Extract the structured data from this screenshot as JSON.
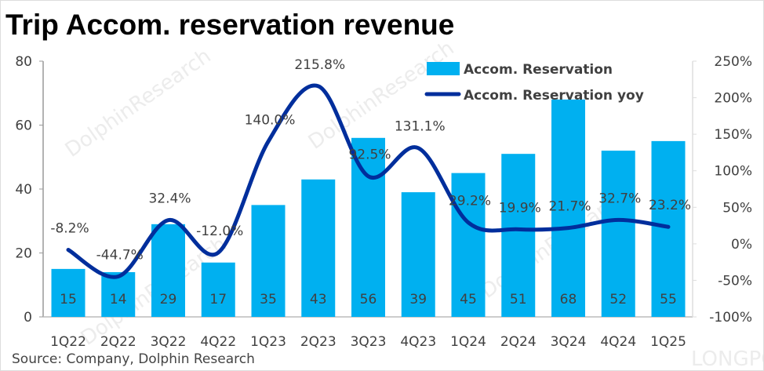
{
  "title": "Trip Accom. reservation revenue",
  "source": "Source: Company, Dolphin Research",
  "watermark": "DolphinResearch",
  "watermark2": "LONGPORT",
  "chart_data": {
    "type": "bar+line",
    "title": "Trip Accom. reservation revenue",
    "categories": [
      "1Q22",
      "2Q22",
      "3Q22",
      "4Q22",
      "1Q23",
      "2Q23",
      "3Q23",
      "4Q23",
      "1Q24",
      "2Q24",
      "3Q24",
      "4Q24",
      "1Q25"
    ],
    "series": [
      {
        "name": "Accom. Reservation",
        "type": "bar",
        "axis": "left",
        "color": "#00B0F0",
        "values": [
          15,
          14,
          29,
          17,
          35,
          43,
          56,
          39,
          45,
          51,
          68,
          52,
          55
        ]
      },
      {
        "name": "Accom. Reservation yoy",
        "type": "line",
        "axis": "right",
        "color": "#002E9C",
        "values": [
          -8.2,
          -44.7,
          32.4,
          -12.0,
          140.0,
          215.8,
          92.5,
          131.1,
          29.2,
          19.9,
          21.7,
          32.7,
          23.2
        ]
      }
    ],
    "ylim": [
      0,
      80
    ],
    "yticks": [
      0,
      20,
      40,
      60,
      80
    ],
    "y2lim": [
      -100,
      250
    ],
    "y2ticks": [
      "-100%",
      "-50%",
      "0%",
      "50%",
      "100%",
      "150%",
      "200%",
      "250%"
    ],
    "legend": "top-right"
  }
}
